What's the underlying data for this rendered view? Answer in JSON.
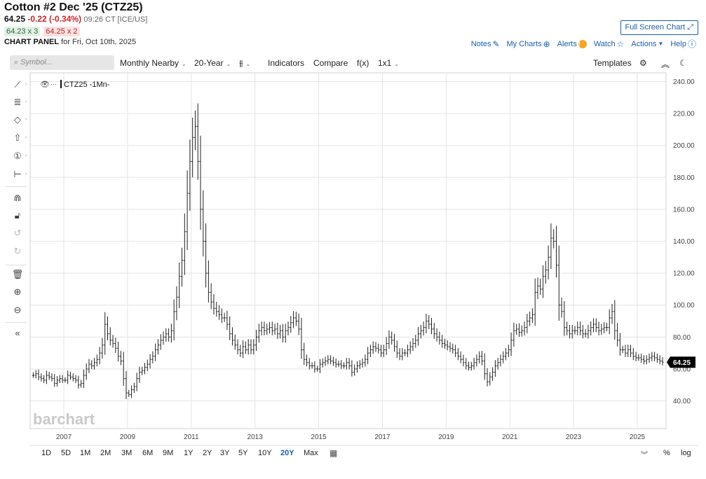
{
  "header": {
    "title": "Cotton #2 Dec '25 (CTZ25)",
    "last": "64.25",
    "change": "-0.22 (-0.34%)",
    "time": "09:26 CT [ICE/US]",
    "bid": "64.23 x 3",
    "ask": "64.25 x 2",
    "panel_label": "CHART PANEL",
    "panel_date": "for Fri, Oct 10th, 2025",
    "fullscreen": "Full Screen Chart"
  },
  "links": {
    "notes": "Notes",
    "my_charts": "My Charts",
    "alerts": "Alerts",
    "alert_badge": "!",
    "watch": "Watch",
    "actions": "Actions",
    "help": "Help"
  },
  "toolbar": {
    "search_placeholder": "Symbol...",
    "period": "Monthly Nearby",
    "range": "20-Year",
    "indicators": "Indicators",
    "compare": "Compare",
    "fx": "f(x)",
    "layout": "1x1",
    "templates": "Templates"
  },
  "ranges": [
    "1D",
    "5D",
    "1M",
    "2M",
    "3M",
    "6M",
    "9M",
    "1Y",
    "2Y",
    "3Y",
    "5Y",
    "10Y",
    "20Y",
    "Max"
  ],
  "active_range": "20Y",
  "footer": {
    "pct": "%",
    "log": "log"
  },
  "icons": [
    "search-icon",
    "notes-icon",
    "plus-circle-icon",
    "alert-icon",
    "star-icon",
    "help-icon",
    "gear-icon",
    "collapse-icon",
    "moon-icon",
    "calendar-icon",
    "eye-icon"
  ],
  "colors": {
    "accent": "#1c5fa8",
    "down": "#c62828",
    "bar": "#222222",
    "last_price_bg": "#000000"
  },
  "chart_data": {
    "type": "ohlc",
    "legend": "CTZ25 -1Mn-",
    "watermark": "barchart",
    "last_price": 64.25,
    "ylim": [
      24,
      245
    ],
    "yticks": [
      40,
      60,
      80,
      100,
      120,
      140,
      160,
      180,
      200,
      220,
      240
    ],
    "ytick_labels": [
      "40.00",
      "60.00",
      "80.00",
      "100.00",
      "120.00",
      "140.00",
      "160.00",
      "180.00",
      "200.00",
      "220.00",
      "240.00"
    ],
    "xlim": [
      2006.0,
      2026.0
    ],
    "xticks": [
      2007,
      2009,
      2011,
      2013,
      2015,
      2017,
      2019,
      2021,
      2023,
      2025
    ],
    "xtick_labels": [
      "2007",
      "2009",
      "2011",
      "2013",
      "2015",
      "2017",
      "2019",
      "2021",
      "2023",
      "2025"
    ],
    "grid": true,
    "interval": "monthly",
    "start": "2006-01",
    "closes": [
      56,
      57,
      55,
      54,
      53,
      56,
      55,
      54,
      51,
      53,
      54,
      53,
      53,
      56,
      55,
      54,
      53,
      50,
      51,
      56,
      60,
      63,
      62,
      64,
      66,
      70,
      75,
      88,
      82,
      78,
      76,
      73,
      68,
      65,
      54,
      45,
      44,
      47,
      49,
      54,
      58,
      59,
      61,
      63,
      66,
      68,
      72,
      75,
      78,
      80,
      82,
      80,
      84,
      96,
      105,
      118,
      128,
      146,
      170,
      190,
      205,
      212,
      190,
      160,
      140,
      120,
      108,
      102,
      98,
      96,
      94,
      92,
      92,
      88,
      82,
      78,
      75,
      72,
      70,
      74,
      72,
      75,
      72,
      75,
      80,
      84,
      86,
      84,
      85,
      86,
      84,
      85,
      82,
      84,
      80,
      84,
      86,
      89,
      92,
      90,
      85,
      72,
      66,
      64,
      62,
      62,
      60,
      60,
      63,
      64,
      65,
      66,
      65,
      64,
      63,
      63,
      62,
      62,
      64,
      62,
      58,
      60,
      62,
      63,
      64,
      66,
      70,
      72,
      74,
      73,
      72,
      70,
      72,
      76,
      80,
      78,
      74,
      70,
      68,
      70,
      70,
      72,
      74,
      76,
      78,
      82,
      84,
      86,
      90,
      88,
      85,
      82,
      80,
      78,
      76,
      75,
      74,
      73,
      72,
      70,
      68,
      66,
      64,
      62,
      61,
      62,
      64,
      66,
      68,
      65,
      57,
      52,
      55,
      58,
      62,
      64,
      66,
      68,
      70,
      72,
      78,
      84,
      85,
      83,
      84,
      86,
      90,
      92,
      94,
      108,
      112,
      110,
      118,
      122,
      130,
      142,
      140,
      125,
      100,
      96,
      86,
      84,
      82,
      84,
      84,
      86,
      84,
      82,
      82,
      84,
      86,
      88,
      86,
      84,
      85,
      86,
      86,
      92,
      96,
      84,
      78,
      72,
      72,
      70,
      72,
      70,
      68,
      67,
      67,
      66,
      65,
      66,
      67,
      68,
      67,
      66,
      65,
      64.25
    ]
  }
}
